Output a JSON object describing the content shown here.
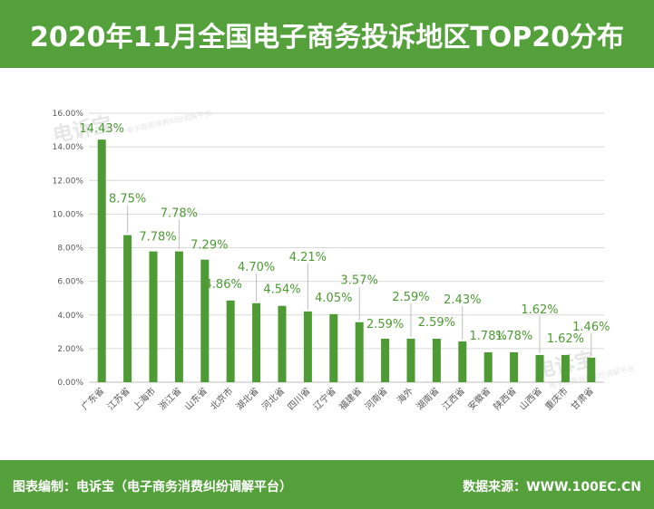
{
  "header": {
    "title": "2020年11月全国电子商务投诉地区TOP20分布"
  },
  "footer": {
    "left": "图表编制：电诉宝（电子商务消费纠纷调解平台）",
    "right": "数据来源：WWW.100EC.CN"
  },
  "watermarks": {
    "top_left": "电诉宝",
    "top_left_sub": "电子商务消费纠纷调解平台",
    "bottom_right": "电诉宝",
    "bottom_right_sub": "电子商务消费纠纷调解平台"
  },
  "chart_data": {
    "type": "bar",
    "title": "",
    "xlabel": "",
    "ylabel": "",
    "ylim": [
      0,
      16
    ],
    "y_ticks": [
      "0.00%",
      "2.00%",
      "4.00%",
      "6.00%",
      "8.00%",
      "10.00%",
      "12.00%",
      "14.00%",
      "16.00%"
    ],
    "grid": true,
    "bar_color": "#4e9a34",
    "label_color": "#4e9a34",
    "categories": [
      "广东省",
      "江苏省",
      "上海市",
      "浙江省",
      "山东省",
      "北京市",
      "湖北省",
      "河北省",
      "四川省",
      "辽宁省",
      "福建省",
      "河南省",
      "海外",
      "湖南省",
      "江西省",
      "安徽省",
      "陕西省",
      "山西省",
      "重庆市",
      "甘肃省"
    ],
    "values": [
      14.43,
      8.75,
      7.78,
      7.78,
      7.29,
      4.86,
      4.7,
      4.54,
      4.21,
      4.05,
      3.57,
      2.59,
      2.59,
      2.59,
      2.43,
      1.78,
      1.78,
      1.62,
      1.62,
      1.46
    ],
    "data_labels": [
      "14.43%",
      "8.75%",
      "7.78%",
      "7.78%",
      "7.29%",
      "4.86%",
      "4.70%",
      "4.54%",
      "4.21%",
      "4.05%",
      "3.57%",
      "2.59%",
      "2.59%",
      "2.59%",
      "2.43%",
      "1.78%",
      "1.78%",
      "1.62%",
      "1.62%",
      "1.46%"
    ]
  }
}
